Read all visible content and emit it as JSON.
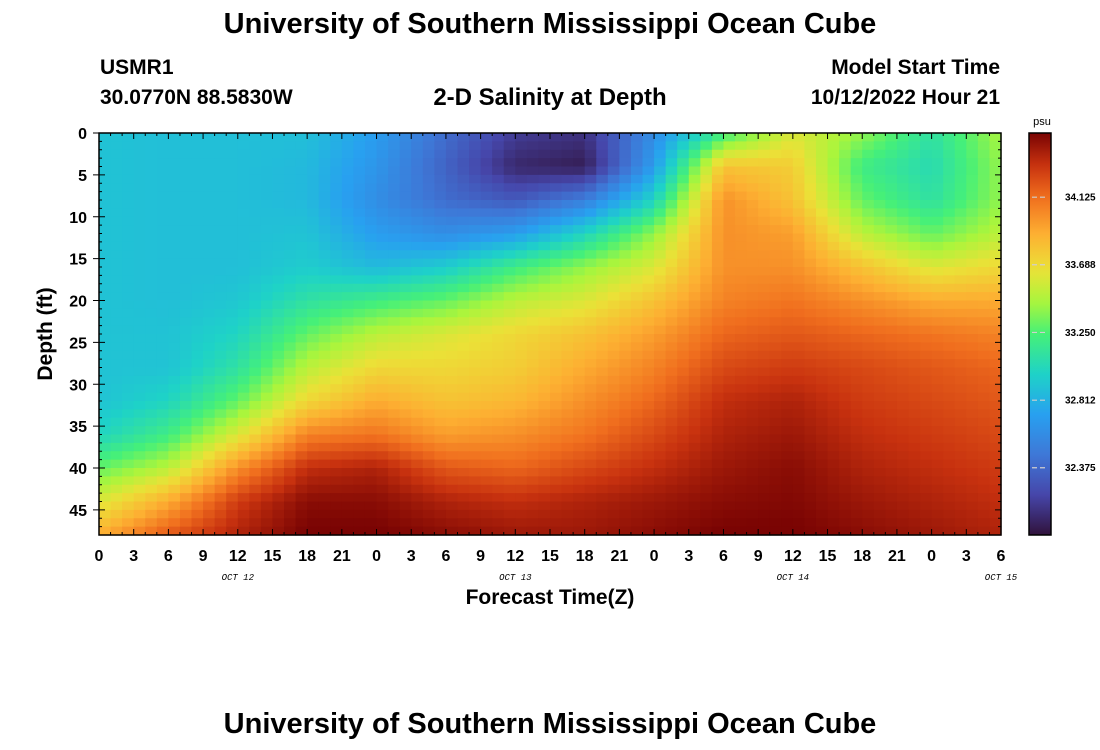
{
  "header": {
    "title": "University of Southern Mississippi Ocean Cube",
    "station_id": "USMR1",
    "coordinates": "30.0770N  88.5830W",
    "subtitle": "2-D Salinity at Depth",
    "model_start_label": "Model Start Time",
    "model_start_value": "10/12/2022 Hour 21"
  },
  "footer": {
    "title": "University of Southern Mississippi Ocean Cube"
  },
  "colors": {
    "background": "#ffffff",
    "text": "#000000",
    "colormap": "turbo"
  },
  "chart_data": {
    "type": "heatmap",
    "title": "2-D Salinity at Depth",
    "xlabel": "Forecast Time(Z)",
    "ylabel": "Depth (ft)",
    "x_tick_labels": [
      "0",
      "3",
      "6",
      "9",
      "12",
      "15",
      "18",
      "21",
      "0",
      "3",
      "6",
      "9",
      "12",
      "15",
      "18",
      "21",
      "0",
      "3",
      "6",
      "9",
      "12",
      "15",
      "18",
      "21",
      "0",
      "3",
      "6"
    ],
    "date_labels": [
      "OCT 12",
      "OCT 13",
      "OCT 14",
      "OCT 15"
    ],
    "date_label_tick_index": [
      4,
      12,
      20,
      26
    ],
    "x_range_hours": [
      0,
      78
    ],
    "y_ticks": [
      0,
      5,
      10,
      15,
      20,
      25,
      30,
      35,
      40,
      45
    ],
    "y_range": [
      0,
      48
    ],
    "y_inverted": true,
    "colorbar": {
      "unit": "psu",
      "ticks": [
        32.375,
        32.812,
        33.25,
        33.688,
        34.125
      ],
      "tick_labels": [
        "32.375",
        "32.812",
        "33.250",
        "33.688",
        "34.125"
      ],
      "min": 31.94,
      "max": 34.54
    },
    "times_hours": [
      0,
      6,
      12,
      18,
      24,
      30,
      36,
      42,
      48,
      54,
      60,
      66,
      72,
      78
    ],
    "depths_ft": [
      0,
      4,
      8,
      12,
      16,
      20,
      24,
      28,
      32,
      36,
      40,
      44,
      48
    ],
    "values": [
      [
        32.9,
        32.88,
        32.88,
        32.88,
        32.7,
        32.4,
        32.15,
        32.1,
        32.6,
        33.2,
        33.6,
        33.4,
        33.1,
        33.45
      ],
      [
        32.9,
        32.88,
        32.88,
        32.85,
        32.65,
        32.35,
        32.05,
        32.0,
        32.7,
        33.8,
        33.75,
        33.2,
        33.05,
        33.4
      ],
      [
        32.9,
        32.88,
        32.88,
        32.85,
        32.6,
        32.4,
        32.3,
        32.5,
        33.0,
        34.0,
        33.8,
        33.3,
        33.1,
        33.4
      ],
      [
        32.9,
        32.88,
        32.88,
        32.9,
        32.7,
        32.6,
        32.7,
        33.0,
        33.4,
        34.0,
        33.95,
        33.5,
        33.3,
        33.5
      ],
      [
        32.9,
        32.88,
        32.88,
        32.95,
        32.85,
        32.95,
        33.2,
        33.4,
        33.6,
        34.0,
        34.0,
        33.8,
        33.6,
        33.7
      ],
      [
        32.9,
        32.88,
        32.92,
        33.1,
        33.2,
        33.3,
        33.5,
        33.6,
        33.8,
        34.05,
        34.1,
        34.0,
        33.9,
        33.9
      ],
      [
        32.9,
        32.9,
        33.0,
        33.3,
        33.5,
        33.6,
        33.7,
        33.8,
        33.95,
        34.15,
        34.2,
        34.15,
        34.1,
        34.05
      ],
      [
        32.9,
        32.9,
        33.1,
        33.5,
        33.7,
        33.7,
        33.75,
        33.9,
        34.05,
        34.25,
        34.3,
        34.25,
        34.2,
        34.15
      ],
      [
        32.9,
        33.0,
        33.3,
        33.7,
        33.9,
        33.8,
        33.85,
        34.0,
        34.15,
        34.35,
        34.4,
        34.3,
        34.25,
        34.2
      ],
      [
        33.0,
        33.2,
        33.6,
        34.05,
        34.1,
        33.95,
        34.0,
        34.1,
        34.25,
        34.4,
        34.45,
        34.35,
        34.3,
        34.25
      ],
      [
        33.3,
        33.5,
        34.0,
        34.35,
        34.4,
        34.2,
        34.15,
        34.25,
        34.35,
        34.45,
        34.5,
        34.4,
        34.35,
        34.3
      ],
      [
        33.6,
        33.9,
        34.3,
        34.5,
        34.5,
        34.4,
        34.35,
        34.4,
        34.45,
        34.5,
        34.52,
        34.45,
        34.4,
        34.35
      ],
      [
        33.9,
        34.2,
        34.4,
        34.55,
        34.55,
        34.5,
        34.45,
        34.45,
        34.5,
        34.55,
        34.55,
        34.5,
        34.45,
        34.4
      ]
    ]
  }
}
